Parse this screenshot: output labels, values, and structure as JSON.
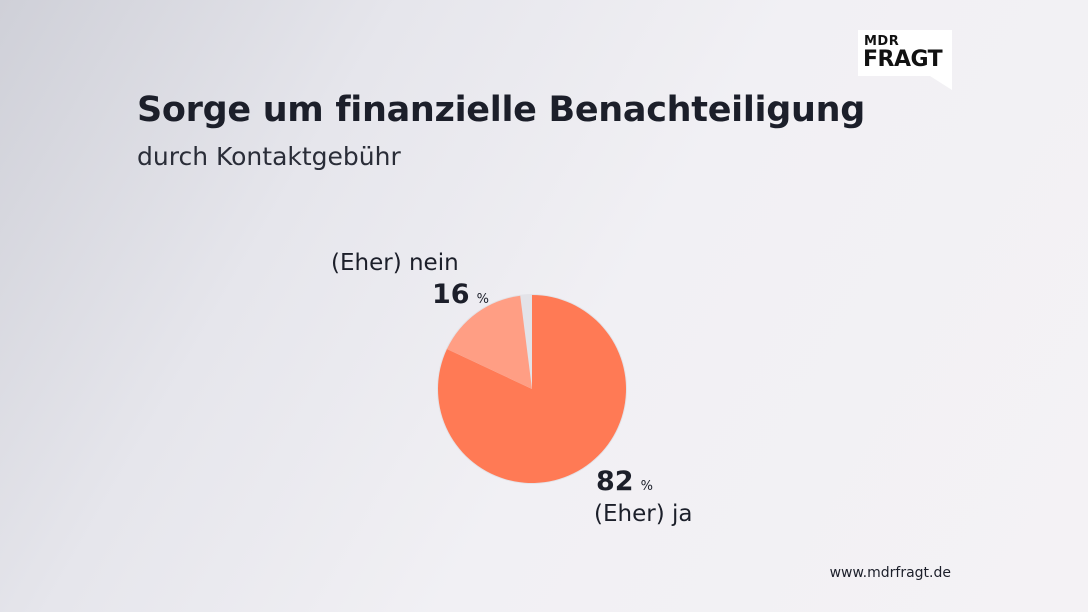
{
  "header": {
    "title": "Sorge um finanzielle Benachteiligung",
    "subtitle": "durch Kontaktgebühr"
  },
  "logo": {
    "line1": "MDR",
    "line2": "FRAGT"
  },
  "chart_data": {
    "type": "pie",
    "title": "Sorge um finanzielle Benachteiligung",
    "subtitle": "durch Kontaktgebühr",
    "slices": [
      {
        "label": "(Eher) ja",
        "value": 82,
        "display": "82",
        "unit": "%",
        "color": "#ff7a55"
      },
      {
        "label": "(Eher) nein",
        "value": 16,
        "display": "16",
        "unit": "%",
        "color": "#ff9e84"
      }
    ],
    "remainder_color": "#e3e3e8"
  },
  "footer": {
    "url": "www.mdrfragt.de"
  }
}
